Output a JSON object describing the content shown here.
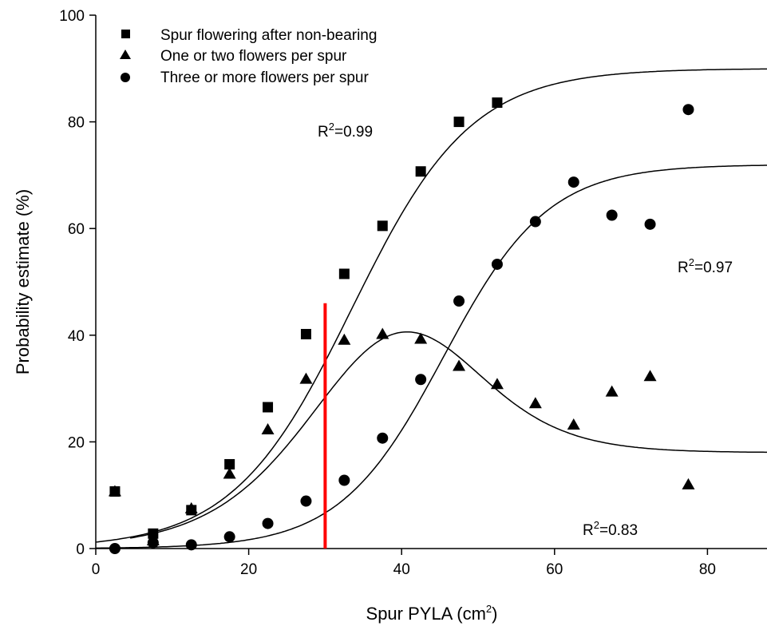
{
  "chart_data": {
    "type": "scatter",
    "title": "",
    "xlabel": "Spur PYLA (cm",
    "xlabel_sup": "2",
    "xlabel_close": ")",
    "ylabel": "Probability estimate (%)",
    "xlim": [
      0,
      88
    ],
    "ylim": [
      0,
      100
    ],
    "xticks": [
      0,
      20,
      40,
      60,
      80
    ],
    "yticks": [
      0,
      20,
      40,
      60,
      80,
      100
    ],
    "grid": false,
    "legend_position": "top-left",
    "series": [
      {
        "name": "Spur flowering after non-bearing",
        "marker": "square",
        "x": [
          2.5,
          7.5,
          12.5,
          17.5,
          22.5,
          27.5,
          32.5,
          37.5,
          42.5,
          47.5,
          52.5
        ],
        "y": [
          10.7,
          2.8,
          7.2,
          15.8,
          26.5,
          40.2,
          51.5,
          60.5,
          70.7,
          80.0,
          83.6
        ]
      },
      {
        "name": "One or two flowers per spur",
        "marker": "triangle",
        "x": [
          2.5,
          7.5,
          12.5,
          17.5,
          22.5,
          27.5,
          32.5,
          37.5,
          42.5,
          47.5,
          52.5,
          57.5,
          62.5,
          67.5,
          72.5,
          77.5
        ],
        "y": [
          10.7,
          1.5,
          7.5,
          14.0,
          22.3,
          31.8,
          39.1,
          40.2,
          39.3,
          34.2,
          30.8,
          27.2,
          23.2,
          29.4,
          32.3,
          12.0
        ]
      },
      {
        "name": "Three or more flowers per spur",
        "marker": "circle",
        "x": [
          2.5,
          7.5,
          12.5,
          17.5,
          22.5,
          27.5,
          32.5,
          37.5,
          42.5,
          47.5,
          52.5,
          57.5,
          62.5,
          67.5,
          72.5,
          77.5
        ],
        "y": [
          0.0,
          1.1,
          0.7,
          2.2,
          4.7,
          8.9,
          12.8,
          20.7,
          31.7,
          46.4,
          53.3,
          61.3,
          68.7,
          62.5,
          60.8,
          82.3
        ]
      }
    ],
    "fits": [
      {
        "model": "logistic",
        "asymptote": 90,
        "midpoint": 33.5,
        "scale": 7.8,
        "r2_label": "R",
        "r2_value": "=0.99"
      },
      {
        "model": "logistic",
        "asymptote": 72,
        "midpoint": 45.5,
        "scale": 6.8,
        "r2_label": "R",
        "r2_value": "=0.97"
      },
      {
        "model": "difference",
        "r2_label": "R",
        "r2_value": "=0.83"
      }
    ],
    "vertical_marker": {
      "x": 30,
      "y_top": 46,
      "color": "#ff0000"
    },
    "r2_sup": "2"
  }
}
